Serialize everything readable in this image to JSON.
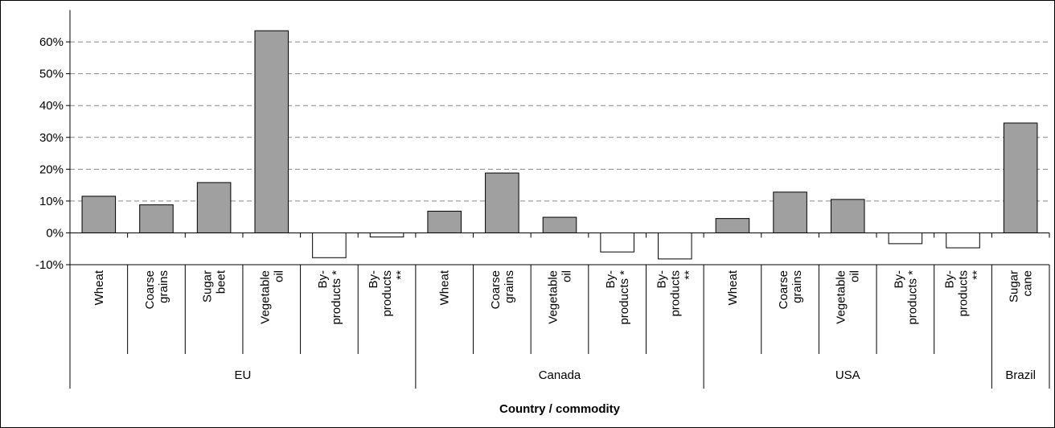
{
  "chart_data": {
    "type": "bar",
    "x_label": "Country / commodity",
    "categories": [
      "Wheat",
      "Coarse\ngrains",
      "Sugar\nbeet",
      "Vegetable\noil",
      "By-\nproducts *",
      "By-\nproducts\n**",
      "Wheat",
      "Coarse\ngrains",
      "Vegetable\noil",
      "By-\nproducts *",
      "By-\nproducts\n**",
      "Wheat",
      "Coarse\ngrains",
      "Vegetable\noil",
      "By-\nproducts *",
      "By-\nproducts\n**",
      "Sugar\ncane"
    ],
    "groups": [
      {
        "name": "EU",
        "size": 6
      },
      {
        "name": "Canada",
        "size": 5
      },
      {
        "name": "USA",
        "size": 5
      },
      {
        "name": "Brazil",
        "size": 1
      }
    ],
    "values": [
      11.5,
      8.8,
      15.8,
      63.5,
      -7.8,
      -1.3,
      6.8,
      18.8,
      4.9,
      -6.0,
      -8.2,
      4.5,
      12.8,
      10.5,
      -3.4,
      -4.7,
      34.5
    ],
    "color": "#a0a0a0",
    "negative_color": "#ffffff",
    "ylim": [
      -10,
      70
    ],
    "yticks": [
      {
        "value": -10,
        "label": "-10%"
      },
      {
        "value": 0,
        "label": "0%"
      },
      {
        "value": 10,
        "label": "10%"
      },
      {
        "value": 20,
        "label": "20%"
      },
      {
        "value": 30,
        "label": "30%"
      },
      {
        "value": 40,
        "label": "40%"
      },
      {
        "value": 50,
        "label": "50%"
      },
      {
        "value": 60,
        "label": "60%"
      }
    ],
    "grid": true
  }
}
